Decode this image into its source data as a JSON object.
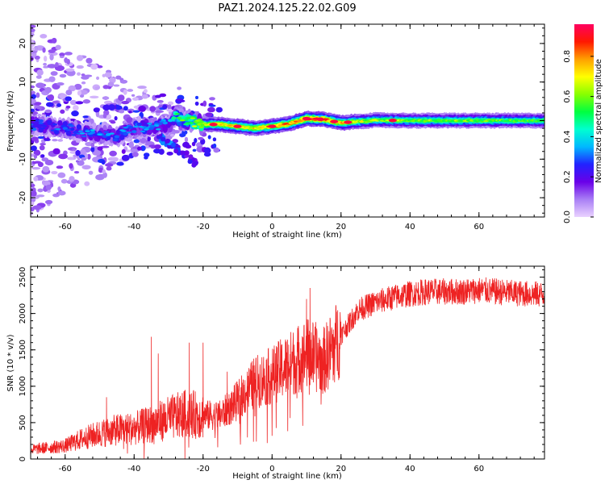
{
  "page_title": "PAZ1.2024.125.22.02.G09",
  "colorbar": {
    "label": "Normalized spectral amplitude",
    "ticks": [
      "0.0",
      "0.2",
      "0.4",
      "0.6",
      "0.8"
    ],
    "tick_values": [
      0.0,
      0.2,
      0.4,
      0.6,
      0.8
    ],
    "range": [
      0,
      0.96
    ],
    "colors": [
      "#ead2ff",
      "#a97ff5",
      "#6a00e8",
      "#2222ff",
      "#00b8ff",
      "#00ffd0",
      "#00ff40",
      "#88ff00",
      "#ffff00",
      "#ffa000",
      "#ff1800",
      "#ff0060"
    ]
  },
  "chart_data": [
    {
      "type": "heatmap",
      "title": "",
      "xlabel": "Height of straight line (km)",
      "ylabel": "Frequency (Hz)",
      "xlim": [
        -70,
        79
      ],
      "ylim": [
        -25,
        25
      ],
      "x_ticks": [
        -60,
        -40,
        -20,
        0,
        20,
        40,
        60
      ],
      "x_tick_labels": [
        "-60",
        "-40",
        "-20",
        "0",
        "20",
        "40",
        "60"
      ],
      "y_ticks": [
        -20,
        -10,
        0,
        10,
        20
      ],
      "y_tick_labels": [
        "-20",
        "-10",
        "0",
        "10",
        "20"
      ],
      "ridge": {
        "x": [
          -70,
          -60,
          -55,
          -50,
          -45,
          -40,
          -35,
          -30,
          -28,
          -25,
          -20,
          -15,
          -10,
          -5,
          0,
          5,
          10,
          15,
          20,
          25,
          30,
          40,
          50,
          60,
          70,
          79
        ],
        "y": [
          -1,
          -2,
          -3,
          -3.5,
          -4,
          -2,
          -1.5,
          -1,
          1,
          0.2,
          -1,
          -1,
          -1.5,
          -2,
          -1.5,
          -0.8,
          0.5,
          0.3,
          -0.6,
          -0.2,
          0.1,
          0,
          0,
          0,
          0,
          0
        ],
        "amplitude": [
          0.3,
          0.3,
          0.33,
          0.33,
          0.35,
          0.3,
          0.33,
          0.36,
          0.5,
          0.55,
          0.65,
          0.72,
          0.75,
          0.7,
          0.78,
          0.8,
          0.88,
          0.85,
          0.75,
          0.65,
          0.6,
          0.6,
          0.58,
          0.58,
          0.56,
          0.55
        ]
      },
      "branch": {
        "x": [
          -33,
          -30,
          -27,
          -25,
          -22
        ],
        "y": [
          -4,
          -6,
          -7.5,
          -9,
          -11
        ],
        "amplitude": [
          0.3,
          0.32,
          0.28,
          0.25,
          0.2
        ]
      }
    },
    {
      "type": "line",
      "title": "",
      "xlabel": "Height of straight line (km)",
      "ylabel": "SNR (10 * v/v)",
      "xlim": [
        -70,
        79
      ],
      "ylim": [
        0,
        2650
      ],
      "x_ticks": [
        -60,
        -40,
        -20,
        0,
        20,
        40,
        60
      ],
      "x_tick_labels": [
        "-60",
        "-40",
        "-20",
        "0",
        "20",
        "40",
        "60"
      ],
      "y_ticks": [
        0,
        500,
        1000,
        1500,
        2000,
        2500
      ],
      "y_tick_labels": [
        "0",
        "500",
        "1000",
        "1500",
        "2000",
        "2500"
      ],
      "series_color": "#ee2222",
      "envelope": {
        "x": [
          -70,
          -60,
          -55,
          -50,
          -45,
          -40,
          -35,
          -30,
          -25,
          -20,
          -15,
          -10,
          -5,
          0,
          5,
          10,
          15,
          20,
          25,
          30,
          35,
          40,
          45,
          50,
          55,
          60,
          65,
          70,
          79
        ],
        "y": [
          130,
          180,
          280,
          350,
          400,
          420,
          480,
          560,
          620,
          600,
          600,
          800,
          1050,
          1150,
          1300,
          1450,
          1350,
          1700,
          2050,
          2150,
          2220,
          2270,
          2300,
          2300,
          2300,
          2320,
          2300,
          2280,
          2260
        ]
      },
      "peaks": {
        "x": [
          -48,
          -35,
          -33,
          -24,
          -20,
          -13,
          10,
          11
        ],
        "y": [
          850,
          1680,
          1450,
          1600,
          1600,
          1200,
          2200,
          2350
        ]
      }
    }
  ]
}
